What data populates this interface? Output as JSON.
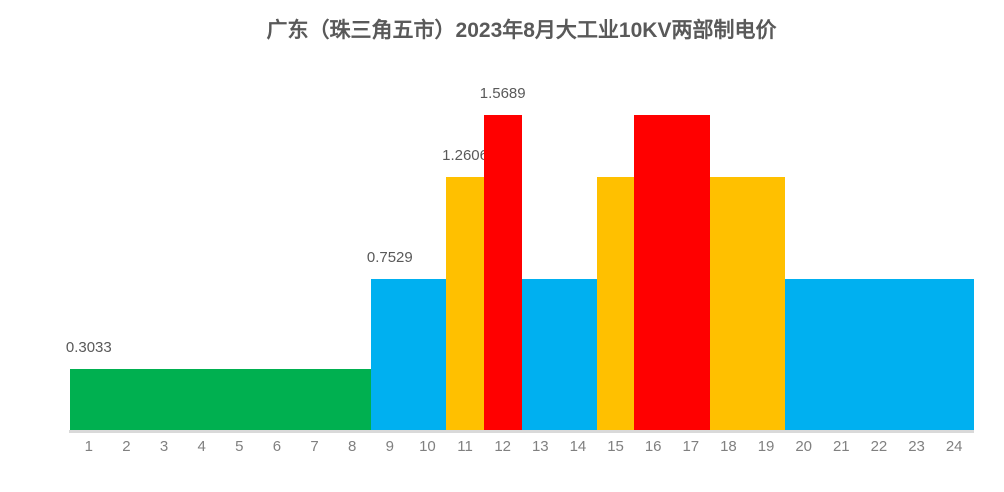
{
  "chart_data": {
    "type": "bar",
    "title": "广东（珠三角五市）2023年8月大工业10KV两部制电价",
    "xlabel": "",
    "ylabel": "",
    "ylim": [
      0,
      1.7
    ],
    "grid": false,
    "legend": false,
    "categories": [
      1,
      2,
      3,
      4,
      5,
      6,
      7,
      8,
      9,
      10,
      11,
      12,
      13,
      14,
      15,
      16,
      17,
      18,
      19,
      20,
      21,
      22,
      23,
      24
    ],
    "values": [
      0.3033,
      0.3033,
      0.3033,
      0.3033,
      0.3033,
      0.3033,
      0.3033,
      0.3033,
      0.7529,
      0.7529,
      1.2606,
      1.5689,
      0.7529,
      0.7529,
      1.2606,
      1.5689,
      1.5689,
      1.2606,
      1.2606,
      0.7529,
      0.7529,
      0.7529,
      0.7529,
      0.7529
    ],
    "periods": [
      "valley",
      "valley",
      "valley",
      "valley",
      "valley",
      "valley",
      "valley",
      "valley",
      "flat",
      "flat",
      "peak",
      "sharp",
      "flat",
      "flat",
      "peak",
      "sharp",
      "sharp",
      "peak",
      "peak",
      "flat",
      "flat",
      "flat",
      "flat",
      "flat"
    ],
    "period_colors": {
      "valley": "#00B050",
      "flat": "#00B0F0",
      "peak": "#FFC000",
      "sharp": "#FF0000"
    },
    "data_labels": [
      {
        "hour": 1,
        "text": "0.3033"
      },
      {
        "hour": 9,
        "text": "0.7529"
      },
      {
        "hour": 11,
        "text": "1.2606"
      },
      {
        "hour": 12,
        "text": "1.5689"
      }
    ],
    "colors": {
      "title": "#595959",
      "data_label": "#595959",
      "tick_label": "#808080",
      "axis_line": "#D9D9D9",
      "background": "#FFFFFF"
    }
  }
}
